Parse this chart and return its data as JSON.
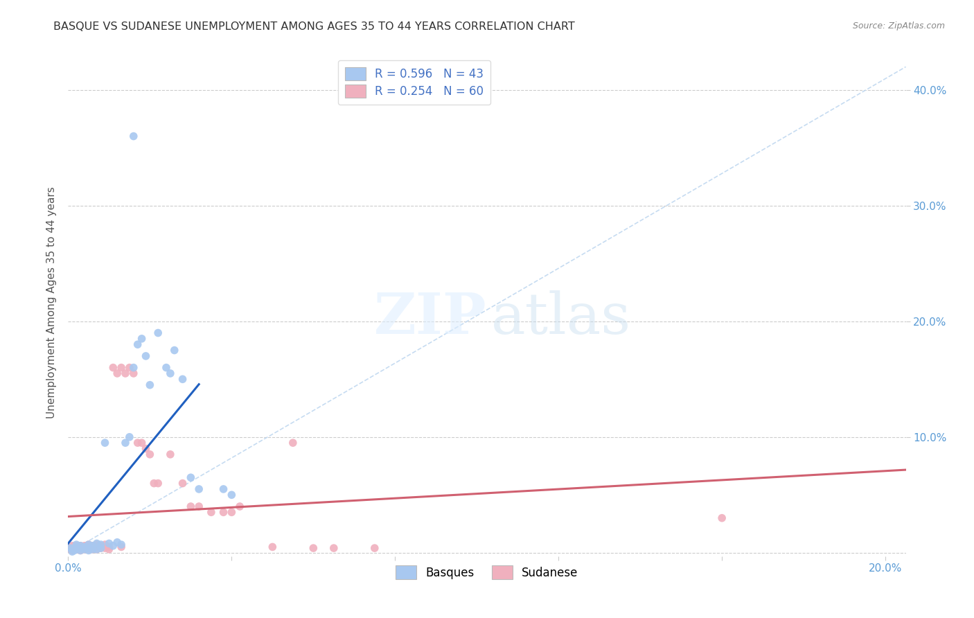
{
  "title": "BASQUE VS SUDANESE UNEMPLOYMENT AMONG AGES 35 TO 44 YEARS CORRELATION CHART",
  "source": "Source: ZipAtlas.com",
  "ylabel": "Unemployment Among Ages 35 to 44 years",
  "xlim": [
    0.0,
    0.205
  ],
  "ylim": [
    -0.003,
    0.435
  ],
  "basque_color": "#a8c8f0",
  "basque_edge_color": "#a8c8f0",
  "sudanese_color": "#f0b0be",
  "sudanese_edge_color": "#f0b0be",
  "basque_line_color": "#2060c0",
  "sudanese_line_color": "#d06070",
  "diagonal_color": "#c0d8f0",
  "R_basque": 0.596,
  "N_basque": 43,
  "R_sudanese": 0.254,
  "N_sudanese": 60,
  "basque_x": [
    0.0005,
    0.001,
    0.001,
    0.0015,
    0.002,
    0.002,
    0.002,
    0.003,
    0.003,
    0.003,
    0.004,
    0.004,
    0.005,
    0.005,
    0.005,
    0.006,
    0.006,
    0.007,
    0.007,
    0.008,
    0.008,
    0.009,
    0.01,
    0.011,
    0.012,
    0.013,
    0.014,
    0.015,
    0.016,
    0.017,
    0.018,
    0.019,
    0.02,
    0.022,
    0.024,
    0.025,
    0.026,
    0.028,
    0.03,
    0.032,
    0.038,
    0.04,
    0.016
  ],
  "basque_y": [
    0.004,
    0.001,
    0.003,
    0.002,
    0.003,
    0.005,
    0.007,
    0.002,
    0.004,
    0.006,
    0.003,
    0.005,
    0.002,
    0.004,
    0.007,
    0.003,
    0.006,
    0.003,
    0.008,
    0.004,
    0.007,
    0.095,
    0.008,
    0.006,
    0.009,
    0.007,
    0.095,
    0.1,
    0.16,
    0.18,
    0.185,
    0.17,
    0.145,
    0.19,
    0.16,
    0.155,
    0.175,
    0.15,
    0.065,
    0.055,
    0.055,
    0.05,
    0.36
  ],
  "sudanese_x": [
    0.0003,
    0.0005,
    0.001,
    0.001,
    0.001,
    0.001,
    0.002,
    0.002,
    0.002,
    0.002,
    0.003,
    0.003,
    0.003,
    0.003,
    0.004,
    0.004,
    0.004,
    0.005,
    0.005,
    0.005,
    0.005,
    0.006,
    0.006,
    0.006,
    0.007,
    0.007,
    0.007,
    0.008,
    0.008,
    0.009,
    0.009,
    0.01,
    0.01,
    0.011,
    0.012,
    0.013,
    0.013,
    0.014,
    0.015,
    0.016,
    0.017,
    0.018,
    0.019,
    0.02,
    0.021,
    0.022,
    0.025,
    0.028,
    0.03,
    0.032,
    0.035,
    0.038,
    0.04,
    0.042,
    0.05,
    0.055,
    0.06,
    0.065,
    0.075,
    0.16
  ],
  "sudanese_y": [
    0.004,
    0.003,
    0.002,
    0.004,
    0.005,
    0.006,
    0.003,
    0.004,
    0.005,
    0.006,
    0.002,
    0.003,
    0.005,
    0.006,
    0.003,
    0.004,
    0.006,
    0.003,
    0.004,
    0.005,
    0.007,
    0.003,
    0.004,
    0.006,
    0.003,
    0.005,
    0.007,
    0.004,
    0.006,
    0.004,
    0.007,
    0.003,
    0.005,
    0.16,
    0.155,
    0.16,
    0.005,
    0.155,
    0.16,
    0.155,
    0.095,
    0.095,
    0.09,
    0.085,
    0.06,
    0.06,
    0.085,
    0.06,
    0.04,
    0.04,
    0.035,
    0.035,
    0.035,
    0.04,
    0.005,
    0.095,
    0.004,
    0.004,
    0.004,
    0.03
  ],
  "grid_color": "#cccccc",
  "tick_color": "#5a9bd5",
  "title_color": "#333333",
  "source_color": "#888888",
  "ylabel_color": "#555555"
}
